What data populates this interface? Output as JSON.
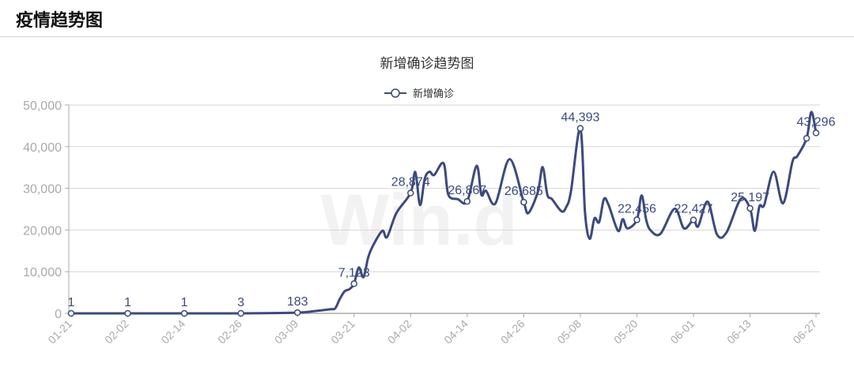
{
  "header": {
    "title": "疫情趋势图"
  },
  "watermark": "Win.d",
  "chart_data": {
    "type": "line",
    "title": "新增确诊趋势图",
    "legend": {
      "position": "top-center",
      "entries": [
        "新增确诊"
      ]
    },
    "color": "#3c4a7d",
    "smooth": true,
    "grid": true,
    "ylim": [
      0,
      50000
    ],
    "yticks": [
      "0",
      "10,000",
      "20,000",
      "30,000",
      "40,000",
      "50,000"
    ],
    "xticks": [
      "01-21",
      "02-02",
      "02-14",
      "02-26",
      "03-09",
      "03-21",
      "04-02",
      "04-14",
      "04-26",
      "05-08",
      "05-20",
      "06-01",
      "06-13",
      "06-27"
    ],
    "series": [
      {
        "name": "新增确诊",
        "points": [
          [
            "01-21",
            1
          ],
          [
            "02-02",
            1
          ],
          [
            "02-14",
            1
          ],
          [
            "02-26",
            3
          ],
          [
            "03-09",
            183
          ],
          [
            "03-13",
            600
          ],
          [
            "03-16",
            1000
          ],
          [
            "03-17",
            1200
          ],
          [
            "03-18",
            3500
          ],
          [
            "03-19",
            5300
          ],
          [
            "03-20",
            5800
          ],
          [
            "03-21",
            7123
          ],
          [
            "03-22",
            11000
          ],
          [
            "03-23",
            8700
          ],
          [
            "03-24",
            13400
          ],
          [
            "03-25",
            16200
          ],
          [
            "03-27",
            19800
          ],
          [
            "03-28",
            18300
          ],
          [
            "03-30",
            24100
          ],
          [
            "04-02",
            28874
          ],
          [
            "04-03",
            33900
          ],
          [
            "04-04",
            26000
          ],
          [
            "04-05",
            32300
          ],
          [
            "04-06",
            34000
          ],
          [
            "04-07",
            33200
          ],
          [
            "04-09",
            36000
          ],
          [
            "04-10",
            28500
          ],
          [
            "04-12",
            27400
          ],
          [
            "04-14",
            26867
          ],
          [
            "04-16",
            35400
          ],
          [
            "04-17",
            28500
          ],
          [
            "04-18",
            29400
          ],
          [
            "04-20",
            26400
          ],
          [
            "04-23",
            37000
          ],
          [
            "04-26",
            26685
          ],
          [
            "04-27",
            24100
          ],
          [
            "04-29",
            29200
          ],
          [
            "04-30",
            35100
          ],
          [
            "05-01",
            28500
          ],
          [
            "05-02",
            27400
          ],
          [
            "05-04",
            24500
          ],
          [
            "05-05",
            25500
          ],
          [
            "05-06",
            29200
          ],
          [
            "05-08",
            44393
          ],
          [
            "05-09",
            24100
          ],
          [
            "05-10",
            17900
          ],
          [
            "05-11",
            22800
          ],
          [
            "05-12",
            21900
          ],
          [
            "05-13",
            27400
          ],
          [
            "05-14",
            26000
          ],
          [
            "05-16",
            19800
          ],
          [
            "05-17",
            22600
          ],
          [
            "05-18",
            20400
          ],
          [
            "05-20",
            22456
          ],
          [
            "05-21",
            28300
          ],
          [
            "05-22",
            22300
          ],
          [
            "05-23",
            19800
          ],
          [
            "05-25",
            19100
          ],
          [
            "05-28",
            25100
          ],
          [
            "05-30",
            20400
          ],
          [
            "06-01",
            22427
          ],
          [
            "06-02",
            20900
          ],
          [
            "06-04",
            26800
          ],
          [
            "06-06",
            18900
          ],
          [
            "06-08",
            19400
          ],
          [
            "06-11",
            27400
          ],
          [
            "06-13",
            25197
          ],
          [
            "06-14",
            19800
          ],
          [
            "06-15",
            25700
          ],
          [
            "06-16",
            26000
          ],
          [
            "06-18",
            34000
          ],
          [
            "06-20",
            26400
          ],
          [
            "06-22",
            36400
          ],
          [
            "06-23",
            37700
          ],
          [
            "06-25",
            42000
          ],
          [
            "06-26",
            48300
          ],
          [
            "06-27",
            43296
          ]
        ]
      }
    ],
    "markers": [
      "01-21",
      "02-02",
      "02-14",
      "02-26",
      "03-09",
      "03-21",
      "04-02",
      "04-14",
      "04-26",
      "05-08",
      "05-20",
      "06-01",
      "06-13",
      "06-25",
      "06-27"
    ],
    "data_labels": [
      {
        "date": "01-21",
        "text": "1"
      },
      {
        "date": "02-02",
        "text": "1"
      },
      {
        "date": "02-14",
        "text": "1"
      },
      {
        "date": "02-26",
        "text": "3"
      },
      {
        "date": "03-09",
        "text": "183"
      },
      {
        "date": "03-21",
        "text": "7,123"
      },
      {
        "date": "04-02",
        "text": "28,874"
      },
      {
        "date": "04-14",
        "text": "26,867"
      },
      {
        "date": "04-26",
        "text": "26,685"
      },
      {
        "date": "05-08",
        "text": "44,393"
      },
      {
        "date": "05-20",
        "text": "22,456"
      },
      {
        "date": "06-01",
        "text": "22,427"
      },
      {
        "date": "06-13",
        "text": "25,197"
      },
      {
        "date": "06-27",
        "text": "43,296"
      }
    ]
  }
}
